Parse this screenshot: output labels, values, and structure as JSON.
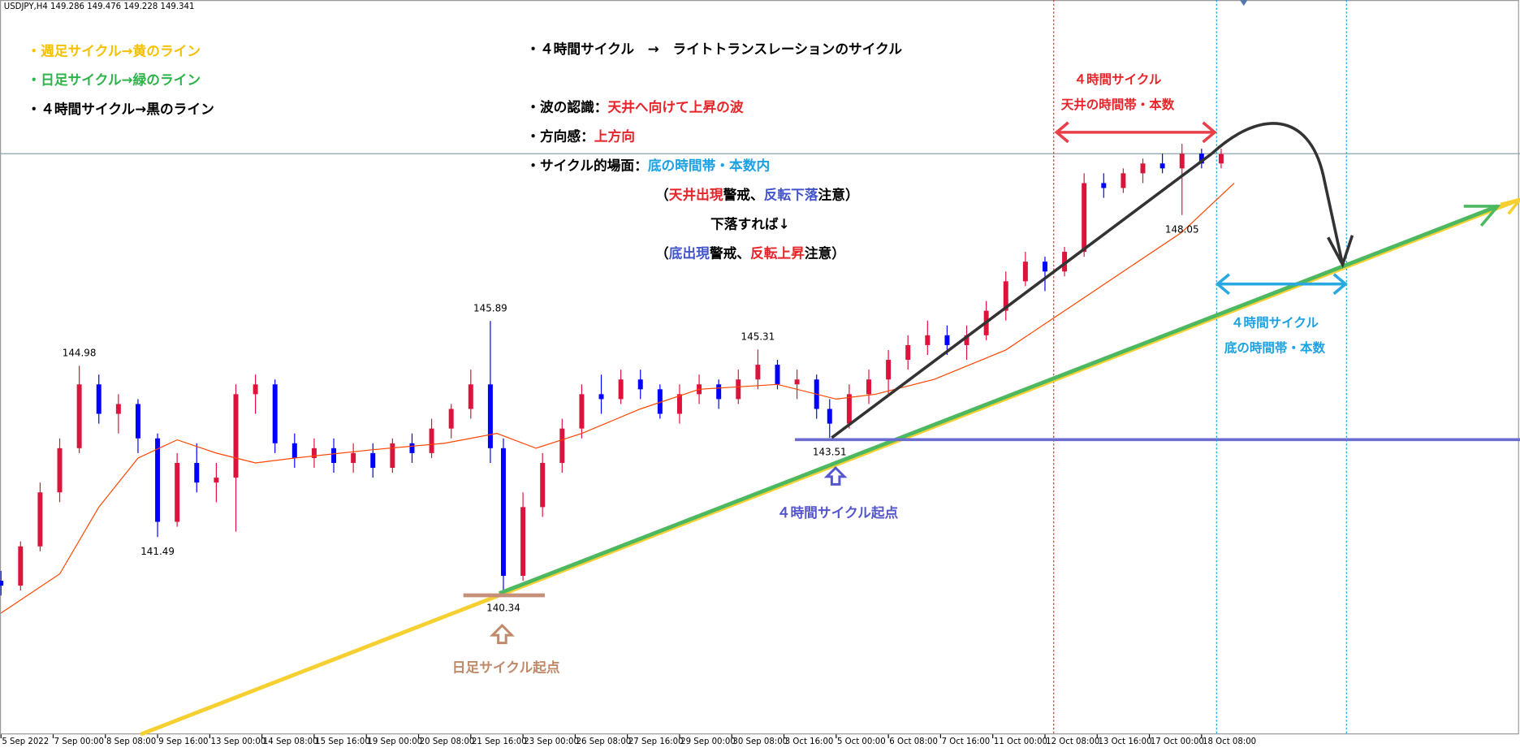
{
  "chart_data": {
    "type": "candlestick",
    "header": "USDJPY,H4  149.286 149.476 149.228 149.341",
    "xlim": [
      -0.149,
      232.8
    ],
    "ylim": [
      137.47,
      152.43
    ],
    "xticks": [
      {
        "value": 0,
        "label": "5 Sep 2022"
      },
      {
        "value": 8,
        "label": "7 Sep 00:00"
      },
      {
        "value": 16,
        "label": "8 Sep 08:00"
      },
      {
        "value": 24,
        "label": "9 Sep 16:00"
      },
      {
        "value": 32,
        "label": "13 Sep 00:00"
      },
      {
        "value": 40,
        "label": "14 Sep 08:00"
      },
      {
        "value": 48,
        "label": "15 Sep 16:00"
      },
      {
        "value": 56,
        "label": "19 Sep 00:00"
      },
      {
        "value": 64,
        "label": "20 Sep 08:00"
      },
      {
        "value": 72,
        "label": "21 Sep 16:00"
      },
      {
        "value": 80,
        "label": "23 Sep 00:00"
      },
      {
        "value": 88,
        "label": "26 Sep 08:00"
      },
      {
        "value": 96,
        "label": "27 Sep 16:00"
      },
      {
        "value": 104,
        "label": "29 Sep 00:00"
      },
      {
        "value": 112,
        "label": "30 Sep 08:00"
      },
      {
        "value": 120,
        "label": "3 Oct 16:00"
      },
      {
        "value": 128,
        "label": "5 Oct 00:00"
      },
      {
        "value": 136,
        "label": "6 Oct 08:00"
      },
      {
        "value": 144,
        "label": "7 Oct 16:00"
      },
      {
        "value": 152,
        "label": "11 Oct 00:00"
      },
      {
        "value": 160,
        "label": "12 Oct 08:00"
      },
      {
        "value": 168,
        "label": "13 Oct 16:00"
      },
      {
        "value": 176,
        "label": "17 Oct 00:00"
      },
      {
        "value": 184,
        "label": "18 Oct 08:00"
      }
    ],
    "up_color": "#dc143c",
    "down_color": "#0000ff",
    "candles": {
      "x": [
        0,
        3,
        6,
        9,
        12,
        15,
        18,
        21,
        24,
        27,
        30,
        33,
        36,
        39,
        42,
        45,
        48,
        51,
        54,
        57,
        60,
        63,
        66,
        69,
        72,
        75,
        77,
        80,
        83,
        86,
        89,
        92,
        95,
        98,
        101,
        104,
        107,
        110,
        113,
        116,
        119,
        122,
        125,
        127,
        130,
        133,
        136,
        139,
        142,
        145,
        148,
        151,
        154,
        157,
        160,
        163,
        166,
        169,
        172,
        175,
        178,
        181,
        184,
        187
      ],
      "open": [
        140.6,
        140.5,
        141.3,
        142.4,
        143.3,
        144.6,
        144.0,
        144.2,
        143.5,
        141.8,
        143.0,
        142.6,
        142.7,
        144.4,
        144.6,
        143.4,
        143.1,
        143.3,
        143.0,
        143.2,
        142.9,
        143.4,
        143.2,
        143.7,
        144.1,
        144.6,
        143.3,
        140.7,
        142.1,
        143.0,
        143.7,
        144.4,
        144.3,
        144.7,
        144.5,
        144.0,
        144.4,
        144.6,
        144.3,
        144.7,
        145.0,
        144.6,
        144.7,
        144.1,
        143.8,
        144.4,
        144.7,
        145.1,
        145.4,
        145.6,
        145.4,
        145.6,
        146.1,
        146.7,
        147.1,
        146.9,
        147.3,
        148.7,
        148.6,
        148.9,
        149.1,
        149.0,
        149.3,
        149.1
      ],
      "high": [
        140.8,
        141.4,
        142.6,
        143.5,
        144.98,
        144.8,
        144.4,
        144.3,
        143.6,
        143.2,
        143.4,
        143.0,
        144.6,
        144.8,
        144.7,
        143.6,
        143.5,
        143.5,
        143.4,
        143.4,
        143.5,
        143.6,
        143.9,
        144.2,
        144.9,
        145.89,
        143.5,
        142.4,
        143.2,
        143.9,
        144.6,
        144.8,
        144.9,
        144.9,
        144.6,
        144.6,
        144.8,
        144.7,
        144.9,
        145.31,
        145.1,
        144.9,
        144.8,
        144.3,
        144.6,
        144.9,
        145.3,
        145.6,
        145.9,
        145.8,
        145.8,
        146.3,
        146.9,
        147.3,
        147.2,
        147.4,
        148.9,
        148.9,
        149.0,
        149.2,
        149.3,
        149.5,
        149.4,
        149.4
      ],
      "low": [
        140.3,
        140.4,
        141.2,
        142.2,
        143.2,
        143.8,
        143.6,
        143.2,
        141.49,
        141.7,
        142.4,
        142.2,
        141.6,
        144.0,
        143.2,
        142.9,
        142.9,
        142.8,
        142.8,
        142.7,
        142.8,
        143.0,
        143.1,
        143.5,
        143.9,
        143.0,
        140.34,
        140.6,
        141.9,
        142.8,
        143.5,
        144.0,
        144.2,
        144.3,
        143.9,
        143.8,
        144.2,
        144.1,
        144.2,
        144.5,
        144.5,
        144.3,
        143.9,
        143.51,
        143.7,
        144.2,
        144.4,
        144.9,
        145.2,
        145.2,
        145.1,
        145.5,
        145.9,
        146.6,
        146.5,
        146.8,
        147.2,
        148.4,
        148.5,
        148.7,
        148.9,
        148.05,
        149.0,
        149.0
      ],
      "close": [
        140.5,
        141.3,
        142.4,
        143.3,
        144.6,
        144.0,
        144.2,
        143.5,
        141.8,
        143.0,
        142.6,
        142.7,
        144.4,
        144.6,
        143.4,
        143.1,
        143.3,
        143.0,
        143.2,
        142.9,
        143.4,
        143.2,
        143.7,
        144.1,
        144.6,
        143.3,
        140.7,
        142.1,
        143.0,
        143.7,
        144.4,
        144.3,
        144.7,
        144.5,
        144.0,
        144.4,
        144.6,
        144.3,
        144.7,
        145.0,
        144.6,
        144.7,
        144.1,
        143.8,
        144.4,
        144.7,
        145.1,
        145.4,
        145.6,
        145.4,
        145.6,
        146.1,
        146.7,
        147.1,
        146.9,
        147.3,
        148.7,
        148.6,
        148.9,
        149.1,
        149.0,
        149.3,
        149.1,
        149.29
      ]
    },
    "marked_extremes": [
      {
        "candle": 4,
        "end": "high"
      },
      {
        "candle": 8,
        "end": "low"
      },
      {
        "candle": 25,
        "end": "high"
      },
      {
        "candle": 26,
        "end": "low"
      },
      {
        "candle": 39,
        "end": "high"
      },
      {
        "candle": 43,
        "end": "low"
      },
      {
        "candle": 61,
        "end": "low"
      }
    ],
    "moving_average": {
      "color": "#ff4500",
      "x": [
        0,
        9,
        15,
        21,
        27,
        33,
        39,
        45,
        57,
        68,
        76,
        82,
        89,
        98,
        107,
        119,
        128,
        134,
        143,
        154,
        163,
        172,
        181,
        189
      ],
      "values": [
        139.94,
        140.74,
        142.1,
        143.1,
        143.47,
        143.2,
        143.0,
        143.1,
        143.27,
        143.4,
        143.6,
        143.3,
        143.6,
        144.1,
        144.5,
        144.6,
        144.3,
        144.4,
        144.7,
        145.3,
        146.1,
        146.9,
        147.7,
        148.7
      ]
    },
    "annotations": [
      [
        {
          "text": "・週足サイクル→黄のライン",
          "color": "#f5c000"
        }
      ],
      [
        {
          "text": "・日足サイクル→緑のライン",
          "color": "#2db34a"
        }
      ],
      [
        {
          "text": "・４時間サイクル→黒のライン",
          "color": "#000000"
        }
      ],
      [
        {
          "text": "・４時間サイクル　→　ライトトランスレーションのサイクル",
          "color": "#000000"
        }
      ],
      [
        {
          "text": "・波の認識：",
          "color": "#000000"
        },
        {
          "text": "天井へ向けて上昇の波",
          "color": "#e8242a"
        }
      ],
      [
        {
          "text": "・方向感：",
          "color": "#000000"
        },
        {
          "text": "上方向",
          "color": "#e8242a"
        }
      ],
      [
        {
          "text": "・サイクル的場面：",
          "color": "#000000"
        },
        {
          "text": "底の時間帯・本数内",
          "color": "#1ba1e2"
        }
      ],
      [
        {
          "text": "（",
          "color": "#000000"
        },
        {
          "text": "天井出現",
          "color": "#e8242a"
        },
        {
          "text": "警戒、",
          "color": "#000000"
        },
        {
          "text": "反転下落",
          "color": "#4455cc"
        },
        {
          "text": "注意）",
          "color": "#000000"
        }
      ],
      [
        {
          "text": "下落すれば↓",
          "color": "#000000"
        }
      ],
      [
        {
          "text": "（",
          "color": "#000000"
        },
        {
          "text": "底出現",
          "color": "#4455cc"
        },
        {
          "text": "警戒、",
          "color": "#000000"
        },
        {
          "text": "反転上昇",
          "color": "#e8242a"
        },
        {
          "text": "注意）",
          "color": "#000000"
        }
      ],
      [
        {
          "text": "４時間サイクル",
          "color": "#e8242a"
        }
      ],
      [
        {
          "text": "天井の時間帯・本数",
          "color": "#e8242a"
        }
      ],
      [
        {
          "text": "４時間サイクル",
          "color": "#1ba1e2"
        }
      ],
      [
        {
          "text": "底の時間帯・本数",
          "color": "#1ba1e2"
        }
      ],
      [
        {
          "text": "４時間サイクル起点",
          "color": "#5555cc"
        }
      ],
      [
        {
          "text": "日足サイクル起点",
          "color": "#c08a6a"
        }
      ]
    ]
  }
}
